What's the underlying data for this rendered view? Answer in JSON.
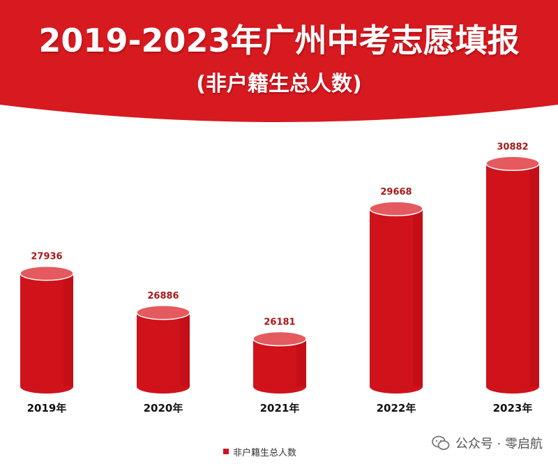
{
  "title": "2019-2023年广州中考志愿填报",
  "subtitle": "(非户籍生总人数)",
  "watermark": "公众号 · 零启航",
  "colors": {
    "bar": "#d0121b",
    "bar_dark": "#b50a12",
    "bar_top": "#e45a5e",
    "label": "#a81818",
    "banner": "#d71920"
  },
  "chart_data": {
    "type": "bar",
    "categories": [
      "2019年",
      "2020年",
      "2021年",
      "2022年",
      "2023年"
    ],
    "values": [
      27936,
      26886,
      26181,
      29668,
      30882
    ],
    "legend": [
      "非户籍生总人数"
    ],
    "ylim": [
      24900,
      31000
    ]
  }
}
